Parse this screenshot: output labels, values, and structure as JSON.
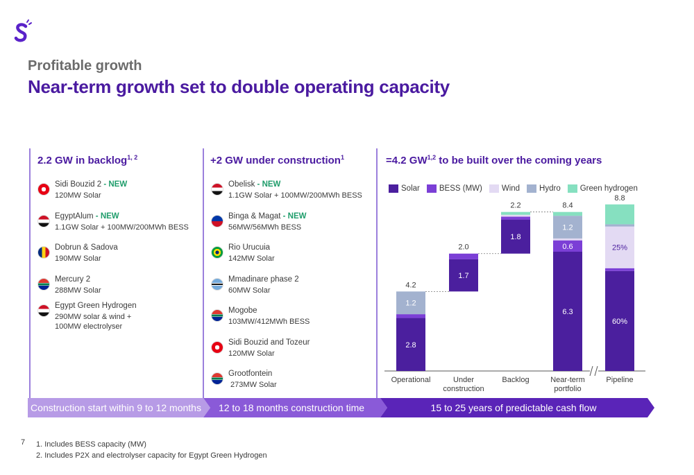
{
  "header": {
    "subtitle": "Profitable growth",
    "title": "Near-term growth set to double operating capacity"
  },
  "columns": {
    "backlog": {
      "heading": "2.2 GW in backlog",
      "heading_sup": "1, 2",
      "projects": [
        {
          "name": "Sidi Bouzid 2",
          "new": " - NEW",
          "desc": "120MW Solar",
          "flag": "tunisia"
        },
        {
          "name": "EgyptAlum",
          "new": " - NEW",
          "desc": "1.1GW Solar + 100MW/200MWh BESS",
          "flag": "egypt"
        },
        {
          "name": "Dobrun & Sadova",
          "new": "",
          "desc": "190MW Solar",
          "flag": "romania"
        },
        {
          "name": "Mercury 2",
          "new": "",
          "desc": "288MW Solar",
          "flag": "south-africa"
        },
        {
          "name": "Egypt Green Hydrogen",
          "new": "",
          "desc": "290MW solar & wind +\n100MW electrolyser",
          "flag": "egypt"
        }
      ]
    },
    "construction": {
      "heading": "+2 GW under construction",
      "heading_sup": "1",
      "projects": [
        {
          "name": "Obelisk",
          "new": " - NEW",
          "desc": "1.1GW Solar + 100MW/200MWh BESS",
          "flag": "egypt"
        },
        {
          "name": "Binga & Magat",
          "new": " - NEW",
          "desc": "56MW/56MWh BESS",
          "flag": "philippines"
        },
        {
          "name": "Rio Urucuia",
          "new": "",
          "desc": "142MW Solar",
          "flag": "brazil"
        },
        {
          "name": "Mmadinare phase 2",
          "new": "",
          "desc": "60MW Solar",
          "flag": "botswana"
        },
        {
          "name": "Mogobe",
          "new": "",
          "desc": "103MW/412MWh BESS",
          "flag": "south-africa"
        },
        {
          "name": "Sidi Bouzid and Tozeur",
          "new": "",
          "desc": "120MW Solar",
          "flag": "tunisia"
        },
        {
          "name": "Grootfontein",
          "new": "",
          "desc": " 273MW Solar",
          "flag": "south-africa"
        }
      ]
    },
    "chart_col": {
      "heading": "=4.2 GW",
      "heading_sup": "1,2",
      "heading_rest": " to be built over the coming years"
    }
  },
  "arrows": {
    "a1": "Construction start within 9 to 12 months",
    "a2": "12 to 18 months construction time",
    "a3": "15 to 25 years of predictable cash flow"
  },
  "footnotes": {
    "page": "7",
    "n1": "1.  Includes BESS capacity (MW)",
    "n2": "2.  Includes P2X and electrolyser capacity for Egypt Green Hydrogen"
  },
  "colors": {
    "solar": "#4b1f9e",
    "bess": "#7b3fd6",
    "wind": "#e3daf3",
    "hydro": "#a3b2cf",
    "green_hydrogen": "#86e0c0",
    "brand": "#4a1aa0"
  },
  "chart_data": {
    "type": "bar",
    "subtype": "waterfall-stacked",
    "categories": [
      "Operational",
      "Under\nconstruction",
      "Backlog",
      "Near-term\nportfolio",
      "Pipeline"
    ],
    "series_names": [
      "Solar",
      "BESS (MW)",
      "Wind",
      "Hydro",
      "Green hydrogen"
    ],
    "totals": [
      "4.2",
      "2.0",
      "2.2",
      "8.4",
      "8.8"
    ],
    "ymax": 8.8,
    "bars": [
      {
        "base": 0,
        "segments": [
          {
            "series": "Solar",
            "value": 2.8,
            "label": "2.8"
          },
          {
            "series": "BESS (MW)",
            "value": 0.2,
            "label": ""
          },
          {
            "series": "Hydro",
            "value": 1.2,
            "label": "1.2"
          }
        ]
      },
      {
        "base": 4.2,
        "segments": [
          {
            "series": "Solar",
            "value": 1.7,
            "label": "1.7"
          },
          {
            "series": "BESS (MW)",
            "value": 0.3,
            "label": ""
          }
        ]
      },
      {
        "base": 6.2,
        "segments": [
          {
            "series": "Solar",
            "value": 1.8,
            "label": "1.8"
          },
          {
            "series": "BESS (MW)",
            "value": 0.15,
            "label": ""
          },
          {
            "series": "Wind",
            "value": 0.1,
            "label": ""
          },
          {
            "series": "Green hydrogen",
            "value": 0.15,
            "label": ""
          }
        ]
      },
      {
        "base": 0,
        "segments": [
          {
            "series": "Solar",
            "value": 6.3,
            "label": "6.3"
          },
          {
            "series": "BESS (MW)",
            "value": 0.6,
            "label": "0.6"
          },
          {
            "series": "Wind",
            "value": 0.1,
            "label": ""
          },
          {
            "series": "Hydro",
            "value": 1.2,
            "label": "1.2"
          },
          {
            "series": "Green hydrogen",
            "value": 0.2,
            "label": ""
          }
        ]
      },
      {
        "base": 0,
        "segments": [
          {
            "series": "Solar",
            "value": 5.28,
            "label": "60%"
          },
          {
            "series": "BESS (MW)",
            "value": 0.15,
            "label": ""
          },
          {
            "series": "Wind",
            "value": 2.2,
            "label": "25%"
          },
          {
            "series": "Hydro",
            "value": 0.12,
            "label": ""
          },
          {
            "series": "Green hydrogen",
            "value": 1.05,
            "label": ""
          }
        ]
      }
    ]
  }
}
